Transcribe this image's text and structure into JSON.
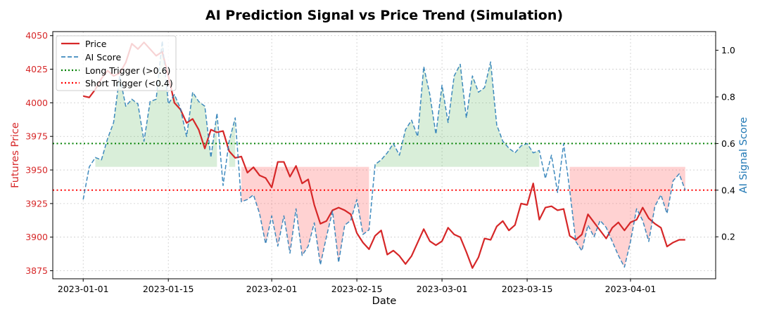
{
  "chart_data": {
    "type": "line",
    "title": "AI Prediction Signal vs Price Trend (Simulation)",
    "xlabel": "Date",
    "ylabel_left": "Futures Price",
    "ylabel_right": "AI Signal Score",
    "x_start": "2023-01-01",
    "num_days": 100,
    "xlim_days": [
      -5,
      104
    ],
    "ylim_left": [
      3869,
      4053
    ],
    "ylim_right": [
      0.02,
      1.08
    ],
    "x_ticks": [
      {
        "day": 0,
        "label": "2023-01-01"
      },
      {
        "day": 14,
        "label": "2023-01-15"
      },
      {
        "day": 31,
        "label": "2023-02-01"
      },
      {
        "day": 45,
        "label": "2023-02-15"
      },
      {
        "day": 59,
        "label": "2023-03-01"
      },
      {
        "day": 73,
        "label": "2023-03-15"
      },
      {
        "day": 90,
        "label": "2023-04-01"
      }
    ],
    "y_ticks_left": [
      3875,
      3900,
      3925,
      3950,
      3975,
      4000,
      4025,
      4050
    ],
    "y_ticks_right": [
      0.2,
      0.4,
      0.6,
      0.8,
      1.0
    ],
    "thresholds": {
      "long": 0.6,
      "short": 0.4,
      "mid": 0.5
    },
    "grid": true,
    "legend_position": "top-left",
    "colors": {
      "price": "#d62728",
      "ai": "#1f77b4",
      "long": "#008000",
      "short": "#ff0000",
      "long_fill": "#2ca02c",
      "short_fill": "#ff6b6b"
    },
    "series": [
      {
        "name": "Price",
        "axis": "left",
        "values": [
          4005,
          4004,
          4010,
          4018,
          4024,
          4020,
          4022,
          4030,
          4044,
          4040,
          4045,
          4040,
          4035,
          4038,
          4020,
          4000,
          3995,
          3985,
          3988,
          3980,
          3966,
          3980,
          3978,
          3979,
          3964,
          3959,
          3960,
          3948,
          3952,
          3946,
          3944,
          3937,
          3956,
          3956,
          3945,
          3953,
          3940,
          3943,
          3924,
          3910,
          3912,
          3920,
          3922,
          3920,
          3917,
          3903,
          3896,
          3891,
          3901,
          3905,
          3887,
          3890,
          3886,
          3880,
          3886,
          3896,
          3906,
          3897,
          3894,
          3897,
          3907,
          3902,
          3900,
          3889,
          3877,
          3885,
          3899,
          3898,
          3908,
          3912,
          3905,
          3909,
          3925,
          3924,
          3940,
          3913,
          3922,
          3923,
          3920,
          3921,
          3901,
          3898,
          3902,
          3917,
          3911,
          3905,
          3899,
          3907,
          3911,
          3905,
          3911,
          3913,
          3922,
          3914,
          3910,
          3907,
          3893,
          3896,
          3898,
          3898
        ]
      },
      {
        "name": "AI Score",
        "axis": "right",
        "values": [
          0.36,
          0.5,
          0.54,
          0.53,
          0.62,
          0.69,
          0.89,
          0.76,
          0.79,
          0.77,
          0.61,
          0.78,
          0.79,
          1.04,
          0.77,
          0.81,
          0.75,
          0.63,
          0.82,
          0.78,
          0.76,
          0.54,
          0.73,
          0.42,
          0.61,
          0.71,
          0.35,
          0.36,
          0.38,
          0.3,
          0.17,
          0.29,
          0.16,
          0.29,
          0.13,
          0.32,
          0.12,
          0.16,
          0.26,
          0.08,
          0.2,
          0.31,
          0.09,
          0.25,
          0.27,
          0.36,
          0.21,
          0.23,
          0.51,
          0.53,
          0.56,
          0.6,
          0.55,
          0.66,
          0.7,
          0.63,
          0.93,
          0.81,
          0.64,
          0.85,
          0.69,
          0.89,
          0.94,
          0.71,
          0.89,
          0.82,
          0.84,
          0.95,
          0.68,
          0.61,
          0.58,
          0.56,
          0.59,
          0.6,
          0.56,
          0.57,
          0.45,
          0.55,
          0.39,
          0.6,
          0.4,
          0.18,
          0.14,
          0.25,
          0.2,
          0.27,
          0.24,
          0.18,
          0.12,
          0.07,
          0.18,
          0.32,
          0.27,
          0.18,
          0.33,
          0.38,
          0.3,
          0.44,
          0.47,
          0.4
        ]
      }
    ],
    "legend": [
      {
        "label": "Price",
        "key": "price",
        "style": "solid"
      },
      {
        "label": "AI Score",
        "key": "ai",
        "style": "dashed"
      },
      {
        "label": "Long Trigger (>0.6)",
        "key": "long",
        "style": "dotted"
      },
      {
        "label": "Short Trigger (<0.4)",
        "key": "short",
        "style": "dotted"
      }
    ]
  }
}
